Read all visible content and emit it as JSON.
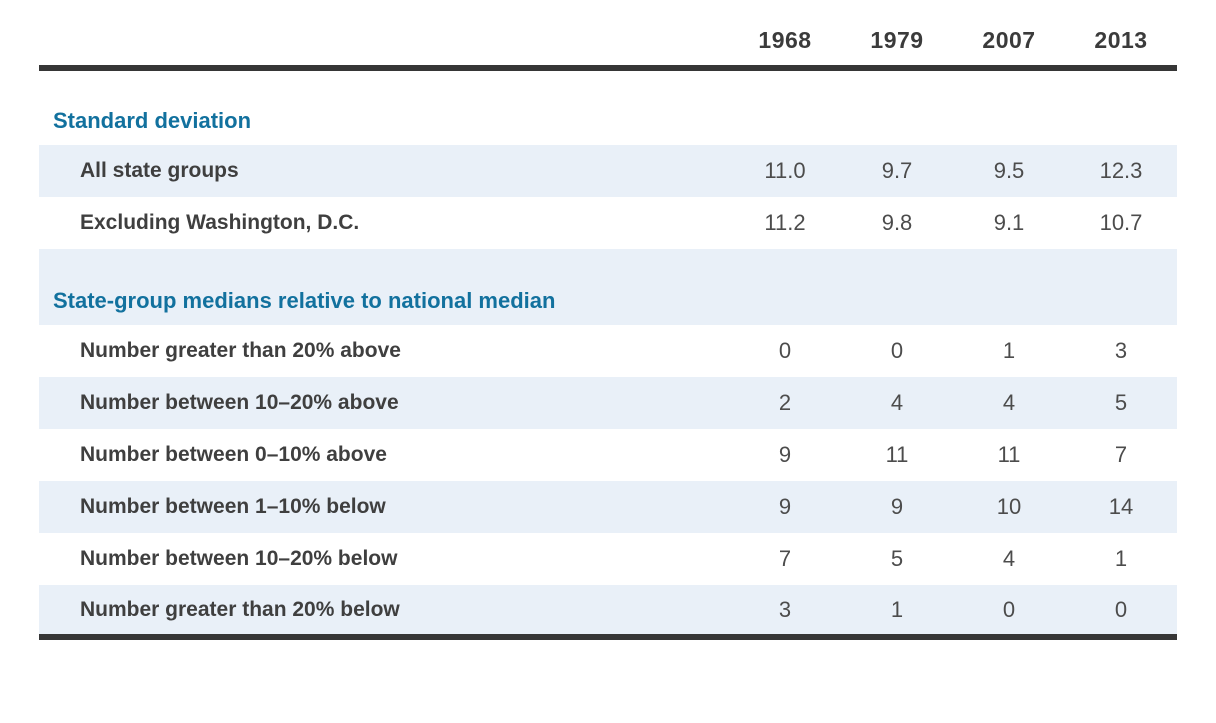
{
  "chart_data": {
    "type": "table",
    "columns": [
      "1968",
      "1979",
      "2007",
      "2013"
    ],
    "sections": [
      {
        "header": "Standard deviation",
        "rows": [
          {
            "label": "All state groups",
            "values": [
              "11.0",
              "9.7",
              "9.5",
              "12.3"
            ]
          },
          {
            "label": "Excluding Washington, D.C.",
            "values": [
              "11.2",
              "9.8",
              "9.1",
              "10.7"
            ]
          }
        ]
      },
      {
        "header": "State-group medians relative to national median",
        "rows": [
          {
            "label": "Number greater than 20% above",
            "values": [
              "0",
              "0",
              "1",
              "3"
            ]
          },
          {
            "label": "Number between 10–20% above",
            "values": [
              "2",
              "4",
              "4",
              "5"
            ]
          },
          {
            "label": "Number between 0–10% above",
            "values": [
              "9",
              "11",
              "11",
              "7"
            ]
          },
          {
            "label": "Number between 1–10% below",
            "values": [
              "9",
              "9",
              "10",
              "14"
            ]
          },
          {
            "label": "Number between 10–20% below",
            "values": [
              "7",
              "5",
              "4",
              "1"
            ]
          },
          {
            "label": "Number greater than 20% below",
            "values": [
              "3",
              "1",
              "0",
              "0"
            ]
          }
        ]
      }
    ],
    "layout": {
      "legend": "none",
      "grid": "zebra-row-shading",
      "value_alignment": "center"
    }
  },
  "colors": {
    "accent_blue": "#12719e",
    "row_shading": "#e9f0f8",
    "rule_dark": "#363636",
    "header_text": "#3b3b3b",
    "label_text": "#3f3f3f",
    "value_text": "#4c4c4c"
  }
}
